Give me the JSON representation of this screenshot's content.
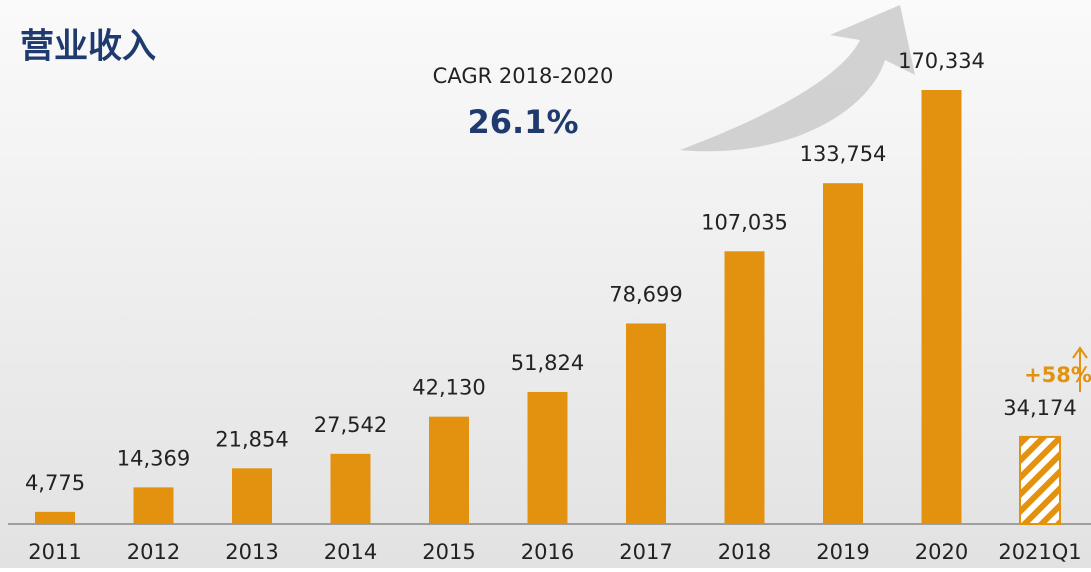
{
  "chart_data": {
    "type": "bar",
    "title": "营业收入",
    "categories": [
      "2011",
      "2012",
      "2013",
      "2014",
      "2015",
      "2016",
      "2017",
      "2018",
      "2019",
      "2020",
      "2021Q1"
    ],
    "values": [
      4775,
      14369,
      21854,
      27542,
      42130,
      51824,
      78699,
      107035,
      133754,
      170334,
      34174
    ],
    "value_labels": [
      "4,775",
      "14,369",
      "21,854",
      "27,542",
      "42,130",
      "51,824",
      "78,699",
      "107,035",
      "133,754",
      "170,334",
      "34,174"
    ],
    "color": "#e3920f",
    "hatched": [
      10
    ],
    "annotations": {
      "cagr_label": "CAGR 2018-2020",
      "cagr_value": "26.1%",
      "growth": "+58%"
    }
  }
}
